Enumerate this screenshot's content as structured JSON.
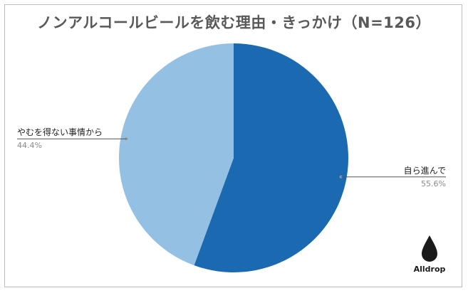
{
  "chart_data": {
    "type": "pie",
    "title": "ノンアルコールビールを飲む理由・きっかけ（N=126）",
    "slices": [
      {
        "label": "自ら進んで",
        "value": 55.6,
        "percent_text": "55.6%",
        "color": "#1b6ab1"
      },
      {
        "label": "やむを得ない事情から",
        "value": 44.4,
        "percent_text": "44.4%",
        "color": "#93c0e3"
      }
    ],
    "start_angle_deg": 0,
    "direction": "clockwise",
    "legend": "none"
  },
  "logo": {
    "text": "Alldrop",
    "icon": "water-drop-icon"
  }
}
